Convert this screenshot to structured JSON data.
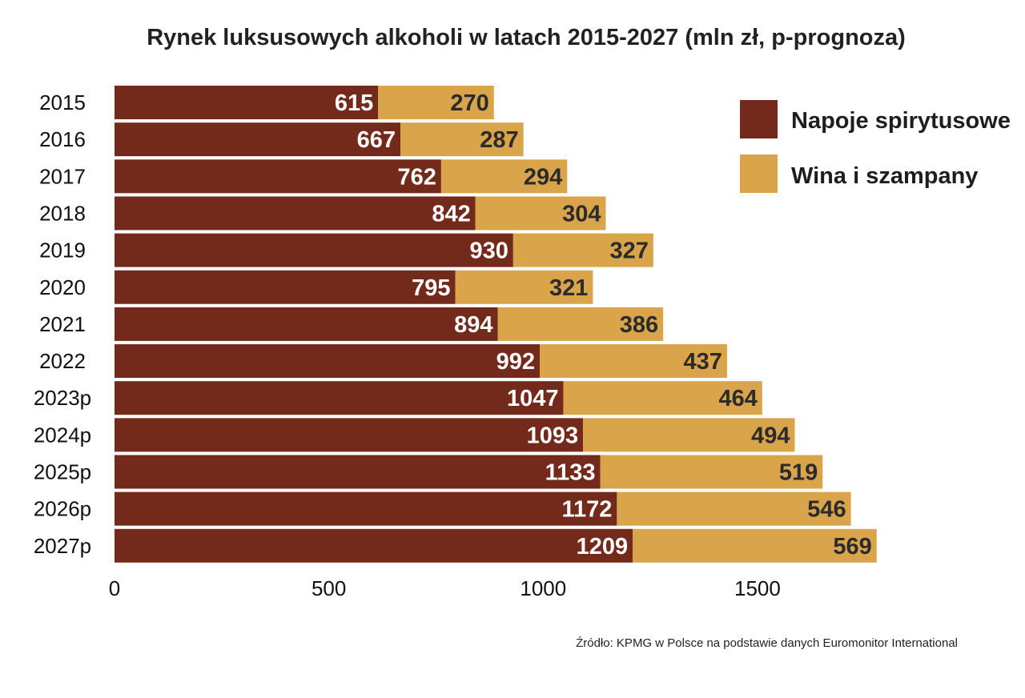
{
  "chart_data": {
    "type": "bar",
    "orientation": "horizontal",
    "stacked": true,
    "title": "Rynek luksusowych alkoholi w latach 2015-2027 (mln zł, p-prognoza)",
    "categories": [
      "2015",
      "2016",
      "2017",
      "2018",
      "2019",
      "2020",
      "2021",
      "2022",
      "2023p",
      "2024p",
      "2025p",
      "2026p",
      "2027p"
    ],
    "series": [
      {
        "name": "Napoje spirytusowe",
        "color": "#742a1a",
        "label_color": "#ffffff",
        "values": [
          615,
          667,
          762,
          842,
          930,
          795,
          894,
          992,
          1047,
          1093,
          1133,
          1172,
          1209
        ]
      },
      {
        "name": "Wina i szampany",
        "color": "#d9a44a",
        "label_color": "#2b2b2b",
        "values": [
          270,
          287,
          294,
          304,
          327,
          321,
          386,
          437,
          464,
          494,
          519,
          546,
          569
        ]
      }
    ],
    "x_ticks": [
      "0",
      "500",
      "1000",
      "1500"
    ],
    "xlim": [
      0,
      1800
    ],
    "xlabel": "",
    "ylabel": "",
    "grid": false,
    "legend_position": "top-right",
    "source": "Źródło: KPMG w Polsce na podstawie danych Euromonitor International"
  }
}
